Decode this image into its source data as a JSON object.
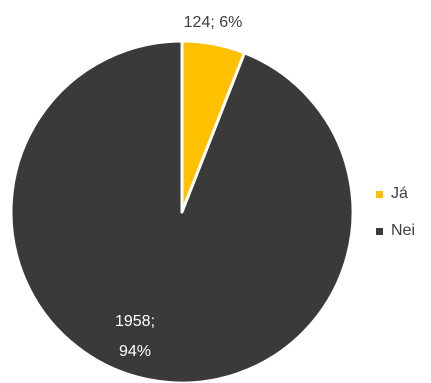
{
  "chart_data": {
    "type": "pie",
    "title": "",
    "start_angle_deg": 0,
    "direction": "clockwise",
    "slices": [
      {
        "name": "Já",
        "value": 124,
        "percent": 6,
        "label_text": "124; 6%",
        "color": "#FFC000"
      },
      {
        "name": "Nei",
        "value": 1958,
        "percent": 94,
        "label_lines": [
          "1958;",
          "94%"
        ],
        "color": "#3A3A3A"
      }
    ],
    "legend_position": "right",
    "slice_border_color": "#FFFFFF"
  }
}
